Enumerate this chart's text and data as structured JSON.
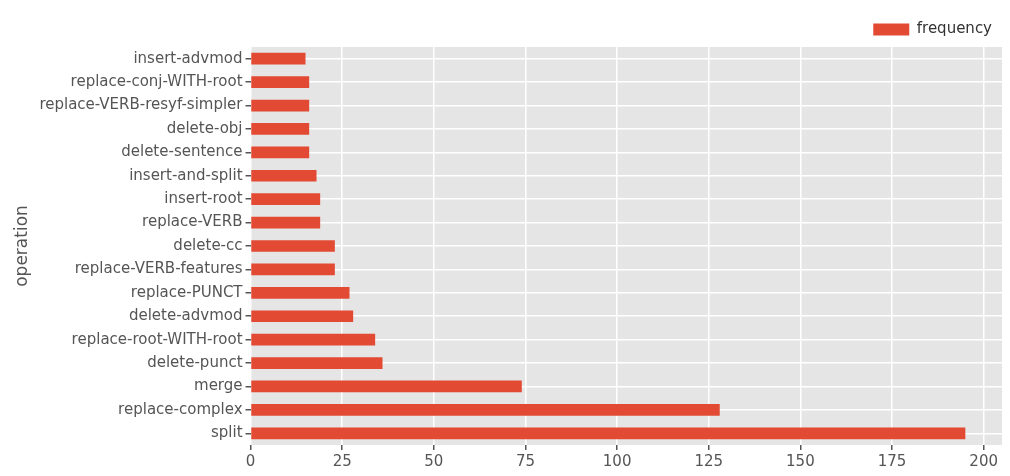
{
  "chart_data": {
    "type": "bar",
    "orientation": "horizontal",
    "ylabel": "operation",
    "categories": [
      "insert-advmod",
      "replace-conj-WITH-root",
      "replace-VERB-resyf-simpler",
      "delete-obj",
      "delete-sentence",
      "insert-and-split",
      "insert-root",
      "replace-VERB",
      "delete-cc",
      "replace-VERB-features",
      "replace-PUNCT",
      "delete-advmod",
      "replace-root-WITH-root",
      "delete-punct",
      "merge",
      "replace-complex",
      "split"
    ],
    "series": [
      {
        "name": "frequency",
        "color": "#e24a33",
        "values": [
          15,
          16,
          16,
          16,
          16,
          18,
          19,
          19,
          23,
          23,
          27,
          28,
          34,
          36,
          74,
          128,
          195
        ]
      }
    ],
    "xlim": [
      0,
      205
    ],
    "xticks": [
      0,
      25,
      50,
      75,
      100,
      125,
      150,
      175,
      200
    ],
    "grid": true,
    "legend": "top right"
  }
}
